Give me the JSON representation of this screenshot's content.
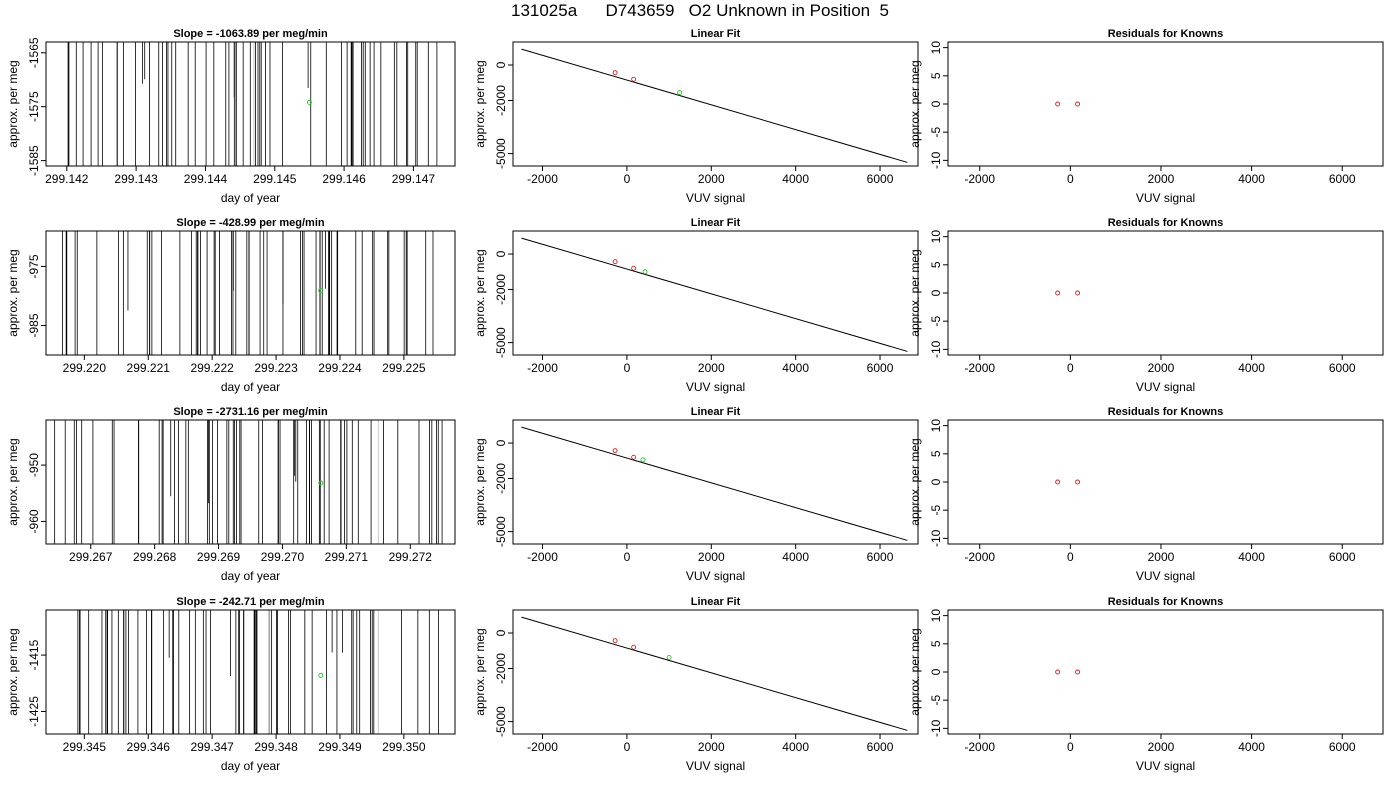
{
  "page": {
    "title": "131025a      D743659   O2 Unknown in Position  5"
  },
  "colors": {
    "trace": "#000000",
    "trace_faint": "#c8c8c8",
    "known": "#d02020",
    "unknown": "#22cc22"
  },
  "chart_data": [
    {
      "type": "line",
      "panel": "time-trace",
      "title": "Slope =  -1063.89  per meg/min",
      "xlabel": "day of year",
      "ylabel": "approx. per meg",
      "xlim": [
        299.1417,
        299.1476
      ],
      "ylim": [
        -1586,
        -1563
      ],
      "xticks": [
        299.142,
        299.143,
        299.144,
        299.145,
        299.146,
        299.147
      ],
      "xtick_labels": [
        "299.142",
        "299.143",
        "299.144",
        "299.145",
        "299.146",
        "299.147"
      ],
      "yticks": [
        -1565,
        -1575,
        -1585
      ],
      "ytick_labels": [
        "-1565",
        "-1575",
        "-1585"
      ],
      "marker": {
        "x": 299.1455,
        "y": -1574.2
      },
      "faint_x": [
        299.1447
      ],
      "seed": 11
    },
    {
      "type": "line",
      "panel": "linear-fit",
      "title": "Linear Fit",
      "xlabel": "VUV signal",
      "ylabel": "approx. per meg",
      "xlim": [
        -2700,
        6900
      ],
      "ylim": [
        -5700,
        1300
      ],
      "xticks": [
        -2000,
        0,
        2000,
        4000,
        6000
      ],
      "xtick_labels": [
        "-2000",
        "0",
        "2000",
        "4000",
        "6000"
      ],
      "yticks": [
        0,
        -2000,
        -5000
      ],
      "ytick_labels": [
        "0",
        "-2000",
        "-5000"
      ],
      "fit_line": {
        "x": [
          -2500,
          6650
        ],
        "y": [
          900,
          -5500
        ]
      },
      "knowns": [
        {
          "x": -280,
          "y": -430
        },
        {
          "x": 160,
          "y": -800
        }
      ],
      "unknown": {
        "x": 1250,
        "y": -1550
      }
    },
    {
      "type": "scatter",
      "panel": "residuals",
      "title": "Residuals for Knowns",
      "xlabel": "VUV signal",
      "ylabel": "approx. per meg",
      "xlim": [
        -2700,
        6900
      ],
      "ylim": [
        -11,
        11
      ],
      "xticks": [
        -2000,
        0,
        2000,
        4000,
        6000
      ],
      "xtick_labels": [
        "-2000",
        "0",
        "2000",
        "4000",
        "6000"
      ],
      "yticks": [
        10,
        5,
        0,
        -5,
        -10
      ],
      "ytick_labels": [
        "10",
        "5",
        "0",
        "-5",
        "-10"
      ],
      "residuals": [
        {
          "x": -280,
          "y": 0
        },
        {
          "x": 160,
          "y": 0
        }
      ]
    },
    {
      "type": "line",
      "panel": "time-trace",
      "title": "Slope =  -428.99  per meg/min",
      "xlabel": "day of year",
      "ylabel": "approx. per meg",
      "xlim": [
        299.2194,
        299.2258
      ],
      "ylim": [
        -990,
        -969
      ],
      "xticks": [
        299.22,
        299.221,
        299.222,
        299.223,
        299.224,
        299.225
      ],
      "xtick_labels": [
        "299.220",
        "299.221",
        "299.222",
        "299.223",
        "299.224",
        "299.225"
      ],
      "yticks": [
        -975,
        -985
      ],
      "ytick_labels": [
        "-975",
        "-985"
      ],
      "marker": {
        "x": 299.2237,
        "y": -979.1
      },
      "faint_x": [],
      "seed": 23
    },
    {
      "type": "line",
      "panel": "linear-fit",
      "title": "Linear Fit",
      "xlabel": "VUV signal",
      "ylabel": "approx. per meg",
      "xlim": [
        -2700,
        6900
      ],
      "ylim": [
        -5700,
        1300
      ],
      "xticks": [
        -2000,
        0,
        2000,
        4000,
        6000
      ],
      "xtick_labels": [
        "-2000",
        "0",
        "2000",
        "4000",
        "6000"
      ],
      "yticks": [
        0,
        -2000,
        -5000
      ],
      "ytick_labels": [
        "0",
        "-2000",
        "-5000"
      ],
      "fit_line": {
        "x": [
          -2500,
          6650
        ],
        "y": [
          900,
          -5500
        ]
      },
      "knowns": [
        {
          "x": -280,
          "y": -430
        },
        {
          "x": 160,
          "y": -800
        }
      ],
      "unknown": {
        "x": 430,
        "y": -1000
      }
    },
    {
      "type": "scatter",
      "panel": "residuals",
      "title": "Residuals for Knowns",
      "xlabel": "VUV signal",
      "ylabel": "approx. per meg",
      "xlim": [
        -2700,
        6900
      ],
      "ylim": [
        -11,
        11
      ],
      "xticks": [
        -2000,
        0,
        2000,
        4000,
        6000
      ],
      "xtick_labels": [
        "-2000",
        "0",
        "2000",
        "4000",
        "6000"
      ],
      "yticks": [
        10,
        5,
        0,
        -5,
        -10
      ],
      "ytick_labels": [
        "10",
        "5",
        "0",
        "-5",
        "-10"
      ],
      "residuals": [
        {
          "x": -280,
          "y": 0
        },
        {
          "x": 160,
          "y": 0
        }
      ]
    },
    {
      "type": "line",
      "panel": "time-trace",
      "title": "Slope =  -2731.16  per meg/min",
      "xlabel": "day of year",
      "ylabel": "approx. per meg",
      "xlim": [
        299.2663,
        299.2727
      ],
      "ylim": [
        -964,
        -942
      ],
      "xticks": [
        299.267,
        299.268,
        299.269,
        299.27,
        299.271,
        299.272
      ],
      "xtick_labels": [
        "299.267",
        "299.268",
        "299.269",
        "299.270",
        "299.271",
        "299.272"
      ],
      "yticks": [
        -950,
        -960
      ],
      "ytick_labels": [
        "-950",
        "-960"
      ],
      "marker": {
        "x": 299.2706,
        "y": -953.2
      },
      "faint_x": [
        299.2715
      ],
      "seed": 37
    },
    {
      "type": "line",
      "panel": "linear-fit",
      "title": "Linear Fit",
      "xlabel": "VUV signal",
      "ylabel": "approx. per meg",
      "xlim": [
        -2700,
        6900
      ],
      "ylim": [
        -5700,
        1300
      ],
      "xticks": [
        -2000,
        0,
        2000,
        4000,
        6000
      ],
      "xtick_labels": [
        "-2000",
        "0",
        "2000",
        "4000",
        "6000"
      ],
      "yticks": [
        0,
        -2000,
        -5000
      ],
      "ytick_labels": [
        "0",
        "-2000",
        "-5000"
      ],
      "fit_line": {
        "x": [
          -2500,
          6650
        ],
        "y": [
          900,
          -5500
        ]
      },
      "knowns": [
        {
          "x": -280,
          "y": -430
        },
        {
          "x": 160,
          "y": -800
        }
      ],
      "unknown": {
        "x": 380,
        "y": -950
      }
    },
    {
      "type": "scatter",
      "panel": "residuals",
      "title": "Residuals for Knowns",
      "xlabel": "VUV signal",
      "ylabel": "approx. per meg",
      "xlim": [
        -2700,
        6900
      ],
      "ylim": [
        -11,
        11
      ],
      "xticks": [
        -2000,
        0,
        2000,
        4000,
        6000
      ],
      "xtick_labels": [
        "-2000",
        "0",
        "2000",
        "4000",
        "6000"
      ],
      "yticks": [
        10,
        5,
        0,
        -5,
        -10
      ],
      "ytick_labels": [
        "10",
        "5",
        "0",
        "-5",
        "-10"
      ],
      "residuals": [
        {
          "x": -280,
          "y": 0
        },
        {
          "x": 160,
          "y": 0
        }
      ]
    },
    {
      "type": "line",
      "panel": "time-trace",
      "title": "Slope =  -242.71  per meg/min",
      "xlabel": "day of year",
      "ylabel": "approx. per meg",
      "xlim": [
        299.3444,
        299.3508
      ],
      "ylim": [
        -1429,
        -1407
      ],
      "xticks": [
        299.345,
        299.346,
        299.347,
        299.348,
        299.349,
        299.35
      ],
      "xtick_labels": [
        "299.345",
        "299.346",
        "299.347",
        "299.348",
        "299.349",
        "299.350"
      ],
      "yticks": [
        -1415,
        -1425
      ],
      "ytick_labels": [
        "-1415",
        "-1425"
      ],
      "marker": {
        "x": 299.3487,
        "y": -1418.6
      },
      "faint_x": [
        299.3479,
        299.3496
      ],
      "seed": 53
    },
    {
      "type": "line",
      "panel": "linear-fit",
      "title": "Linear Fit",
      "xlabel": "VUV signal",
      "ylabel": "approx. per meg",
      "xlim": [
        -2700,
        6900
      ],
      "ylim": [
        -5700,
        1300
      ],
      "xticks": [
        -2000,
        0,
        2000,
        4000,
        6000
      ],
      "xtick_labels": [
        "-2000",
        "0",
        "2000",
        "4000",
        "6000"
      ],
      "yticks": [
        0,
        -2000,
        -5000
      ],
      "ytick_labels": [
        "0",
        "-2000",
        "-5000"
      ],
      "fit_line": {
        "x": [
          -2500,
          6650
        ],
        "y": [
          900,
          -5500
        ]
      },
      "knowns": [
        {
          "x": -280,
          "y": -430
        },
        {
          "x": 160,
          "y": -800
        }
      ],
      "unknown": {
        "x": 1000,
        "y": -1380
      }
    },
    {
      "type": "scatter",
      "panel": "residuals",
      "title": "Residuals for Knowns",
      "xlabel": "VUV signal",
      "ylabel": "approx. per meg",
      "xlim": [
        -2700,
        6900
      ],
      "ylim": [
        -11,
        11
      ],
      "xticks": [
        -2000,
        0,
        2000,
        4000,
        6000
      ],
      "xtick_labels": [
        "-2000",
        "0",
        "2000",
        "4000",
        "6000"
      ],
      "yticks": [
        10,
        5,
        0,
        -5,
        -10
      ],
      "ytick_labels": [
        "10",
        "5",
        "0",
        "-5",
        "-10"
      ],
      "residuals": [
        {
          "x": -280,
          "y": 0
        },
        {
          "x": 160,
          "y": 0
        }
      ]
    }
  ]
}
